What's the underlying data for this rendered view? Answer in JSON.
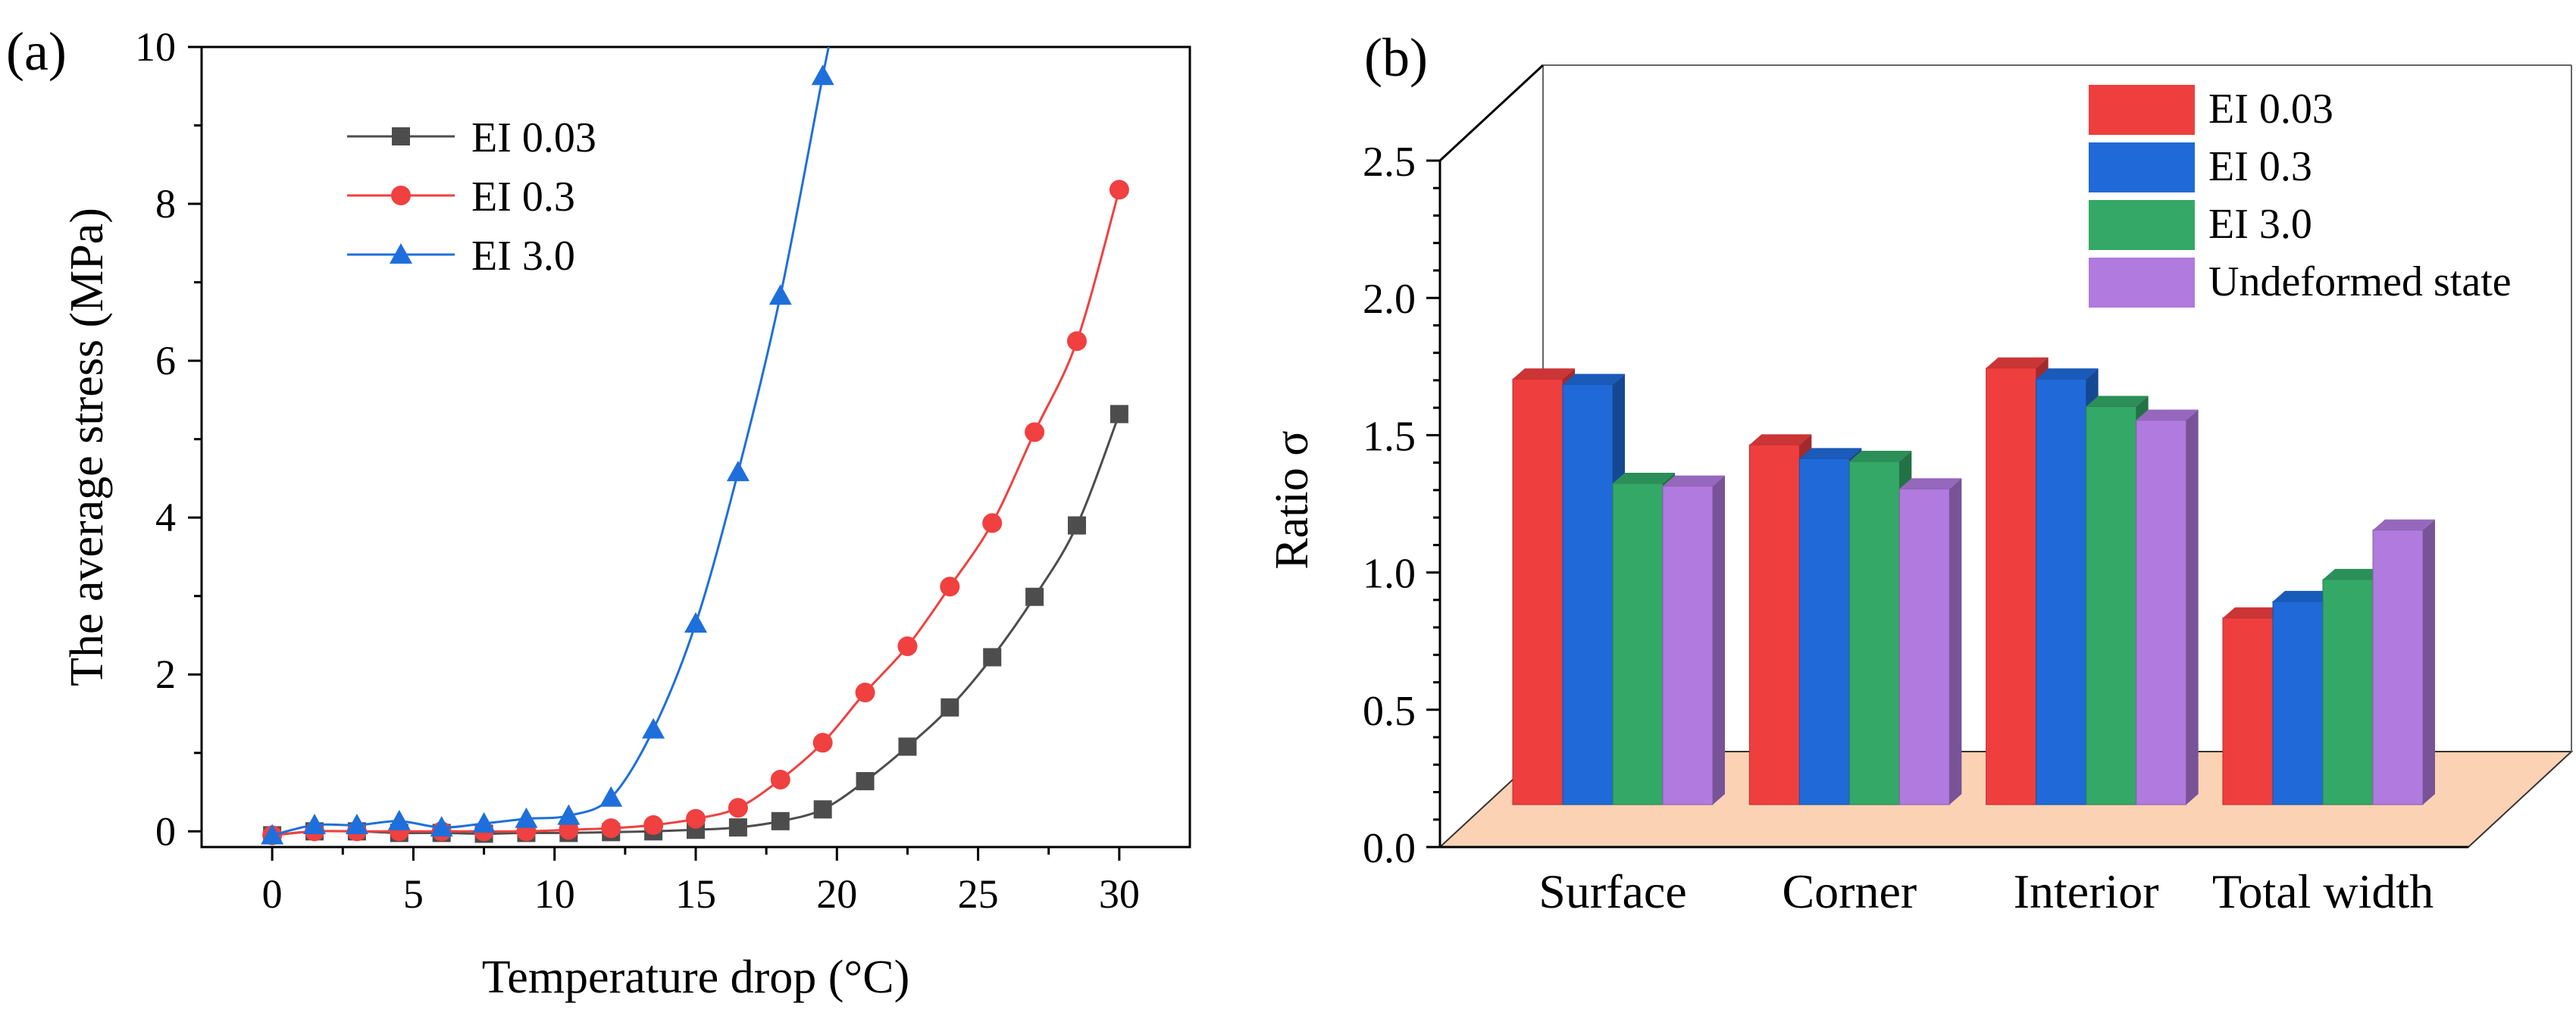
{
  "chart_data": [
    {
      "panel_label": "(a)",
      "type": "line",
      "xlabel": "Temperature drop (°C)",
      "ylabel": "The average stress (MPa)",
      "xlim": [
        -2.5,
        32.5
      ],
      "ylim": [
        -0.2,
        10
      ],
      "x_ticks": [
        0,
        5,
        10,
        15,
        20,
        25,
        30
      ],
      "y_ticks": [
        0,
        2,
        4,
        6,
        8,
        10
      ],
      "legend_position": "top-left",
      "series": [
        {
          "name": "EI 0.03",
          "color": "#4d4d4d",
          "marker": "square",
          "x": [
            0,
            1.5,
            3,
            4.5,
            6,
            7.5,
            9,
            10.5,
            12,
            13.5,
            15,
            16.5,
            18,
            19.5,
            21,
            22.5,
            24,
            25.5,
            27,
            28.5,
            30
          ],
          "y": [
            -0.05,
            0.0,
            0.0,
            -0.02,
            -0.02,
            -0.03,
            -0.02,
            -0.02,
            -0.01,
            0.0,
            0.02,
            0.05,
            0.13,
            0.28,
            0.64,
            1.08,
            1.58,
            2.22,
            2.99,
            3.9,
            5.32
          ]
        },
        {
          "name": "EI 0.3",
          "color": "#f04040",
          "marker": "circle",
          "x": [
            0,
            1.5,
            3,
            4.5,
            6,
            7.5,
            9,
            10.5,
            12,
            13.5,
            15,
            16.5,
            18,
            19.5,
            21,
            22.5,
            24,
            25.5,
            27,
            28.5,
            30
          ],
          "y": [
            -0.05,
            0.0,
            0.0,
            0.0,
            0.0,
            0.0,
            0.0,
            0.02,
            0.04,
            0.08,
            0.16,
            0.3,
            0.66,
            1.13,
            1.77,
            2.36,
            3.12,
            3.93,
            5.09,
            6.25,
            8.18
          ]
        },
        {
          "name": "EI 3.0",
          "color": "#1e6fdc",
          "marker": "triangle",
          "x": [
            0,
            1.5,
            3,
            4.5,
            6,
            7.5,
            9,
            10.5,
            12,
            13.5,
            15,
            16.5,
            18,
            19.5
          ],
          "y": [
            -0.05,
            0.08,
            0.08,
            0.13,
            0.05,
            0.1,
            0.16,
            0.2,
            0.43,
            1.3,
            2.65,
            4.58,
            6.83,
            9.63
          ]
        }
      ]
    },
    {
      "panel_label": "(b)",
      "type": "bar",
      "ylabel": "Ratio σ",
      "ylim": [
        0.0,
        2.5
      ],
      "y_ticks": [
        "0.0",
        "0.5",
        "1.0",
        "1.5",
        "2.0",
        "2.5"
      ],
      "categories": [
        "Surface",
        "Corner",
        "Interior",
        "Total width"
      ],
      "legend_position": "top-right",
      "series": [
        {
          "name": "EI 0.03",
          "color": "#ef3e3e",
          "values": [
            1.55,
            1.31,
            1.59,
            0.68
          ]
        },
        {
          "name": "EI 0.3",
          "color": "#1f6ad8",
          "values": [
            1.53,
            1.26,
            1.55,
            0.74
          ]
        },
        {
          "name": "EI 3.0",
          "color": "#34a866",
          "values": [
            1.17,
            1.25,
            1.45,
            0.82
          ]
        },
        {
          "name": "Undeformed state",
          "color": "#b07ade",
          "values": [
            1.16,
            1.15,
            1.4,
            1.0
          ]
        }
      ]
    }
  ]
}
